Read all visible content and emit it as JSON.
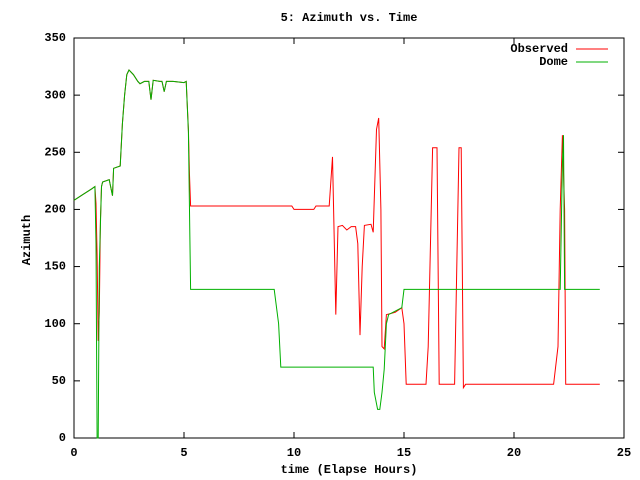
{
  "chart_data": {
    "type": "line",
    "title": "5: Azimuth vs. Time",
    "x_label": "time (Elapse Hours)",
    "y_label": "Azimuth",
    "xlim": [
      0,
      25
    ],
    "xticks": [
      0,
      5,
      10,
      15,
      20,
      25
    ],
    "ylim": [
      0,
      350
    ],
    "yticks": [
      0,
      50,
      100,
      150,
      200,
      250,
      300,
      350
    ],
    "legend": "top-right",
    "series": [
      {
        "name": "Observed",
        "color": "#ff0000",
        "x": [
          0,
          0.4,
          0.8,
          0.95,
          1.0,
          1.05,
          1.1,
          1.15,
          1.2,
          1.25,
          1.3,
          1.6,
          1.75,
          1.8,
          2.1,
          2.2,
          2.3,
          2.4,
          2.5,
          2.7,
          2.9,
          3.0,
          3.2,
          3.4,
          3.5,
          3.6,
          3.9,
          4.0,
          4.1,
          4.2,
          4.5,
          5.0,
          5.1,
          5.2,
          5.25,
          5.3,
          9.9,
          10.0,
          10.9,
          11.0,
          11.6,
          11.75,
          11.8,
          11.9,
          12.0,
          12.2,
          12.4,
          12.6,
          12.8,
          12.9,
          13.0,
          13.1,
          13.2,
          13.5,
          13.6,
          13.75,
          13.85,
          13.95,
          14.0,
          14.1,
          14.2,
          14.6,
          14.9,
          15.0,
          15.1,
          16.0,
          16.1,
          16.3,
          16.5,
          16.6,
          17.3,
          17.5,
          17.6,
          17.7,
          17.8,
          21.8,
          22.0,
          22.1,
          22.2,
          22.3,
          22.35,
          23.9
        ],
        "values": [
          208,
          213,
          218,
          220,
          205,
          160,
          85,
          110,
          190,
          220,
          224,
          226,
          212,
          236,
          238,
          275,
          300,
          318,
          322,
          318,
          312,
          310,
          312,
          312,
          296,
          313,
          312,
          312,
          303,
          312,
          312,
          311,
          312,
          270,
          230,
          203,
          203,
          200,
          200,
          203,
          203,
          246,
          200,
          108,
          185,
          186,
          182,
          185,
          185,
          170,
          90,
          150,
          186,
          187,
          180,
          270,
          280,
          200,
          80,
          78,
          108,
          110,
          114,
          100,
          47,
          47,
          80,
          254,
          254,
          47,
          47,
          254,
          254,
          44,
          47,
          47,
          80,
          200,
          265,
          200,
          47,
          47
        ]
      },
      {
        "name": "Dome",
        "color": "#00b000",
        "x": [
          0,
          0.4,
          0.8,
          0.95,
          1.0,
          1.05,
          1.1,
          1.15,
          1.2,
          1.25,
          1.3,
          1.6,
          1.75,
          1.8,
          2.1,
          2.2,
          2.3,
          2.4,
          2.5,
          2.7,
          2.9,
          3.0,
          3.2,
          3.4,
          3.5,
          3.6,
          3.9,
          4.0,
          4.1,
          4.2,
          4.5,
          5.0,
          5.1,
          5.2,
          5.3,
          9.1,
          9.3,
          9.4,
          13.6,
          13.65,
          13.8,
          13.9,
          14.0,
          14.1,
          14.2,
          14.3,
          14.9,
          15.0,
          22.1,
          22.2,
          22.25,
          22.3,
          23.9
        ],
        "values": [
          208,
          213,
          218,
          220,
          170,
          0,
          0,
          150,
          186,
          220,
          224,
          226,
          212,
          236,
          238,
          275,
          300,
          318,
          322,
          318,
          312,
          310,
          312,
          312,
          296,
          313,
          312,
          312,
          303,
          312,
          312,
          311,
          312,
          268,
          130,
          130,
          100,
          62,
          62,
          40,
          25,
          25,
          40,
          60,
          100,
          108,
          114,
          130,
          130,
          240,
          265,
          130,
          130
        ]
      }
    ]
  }
}
